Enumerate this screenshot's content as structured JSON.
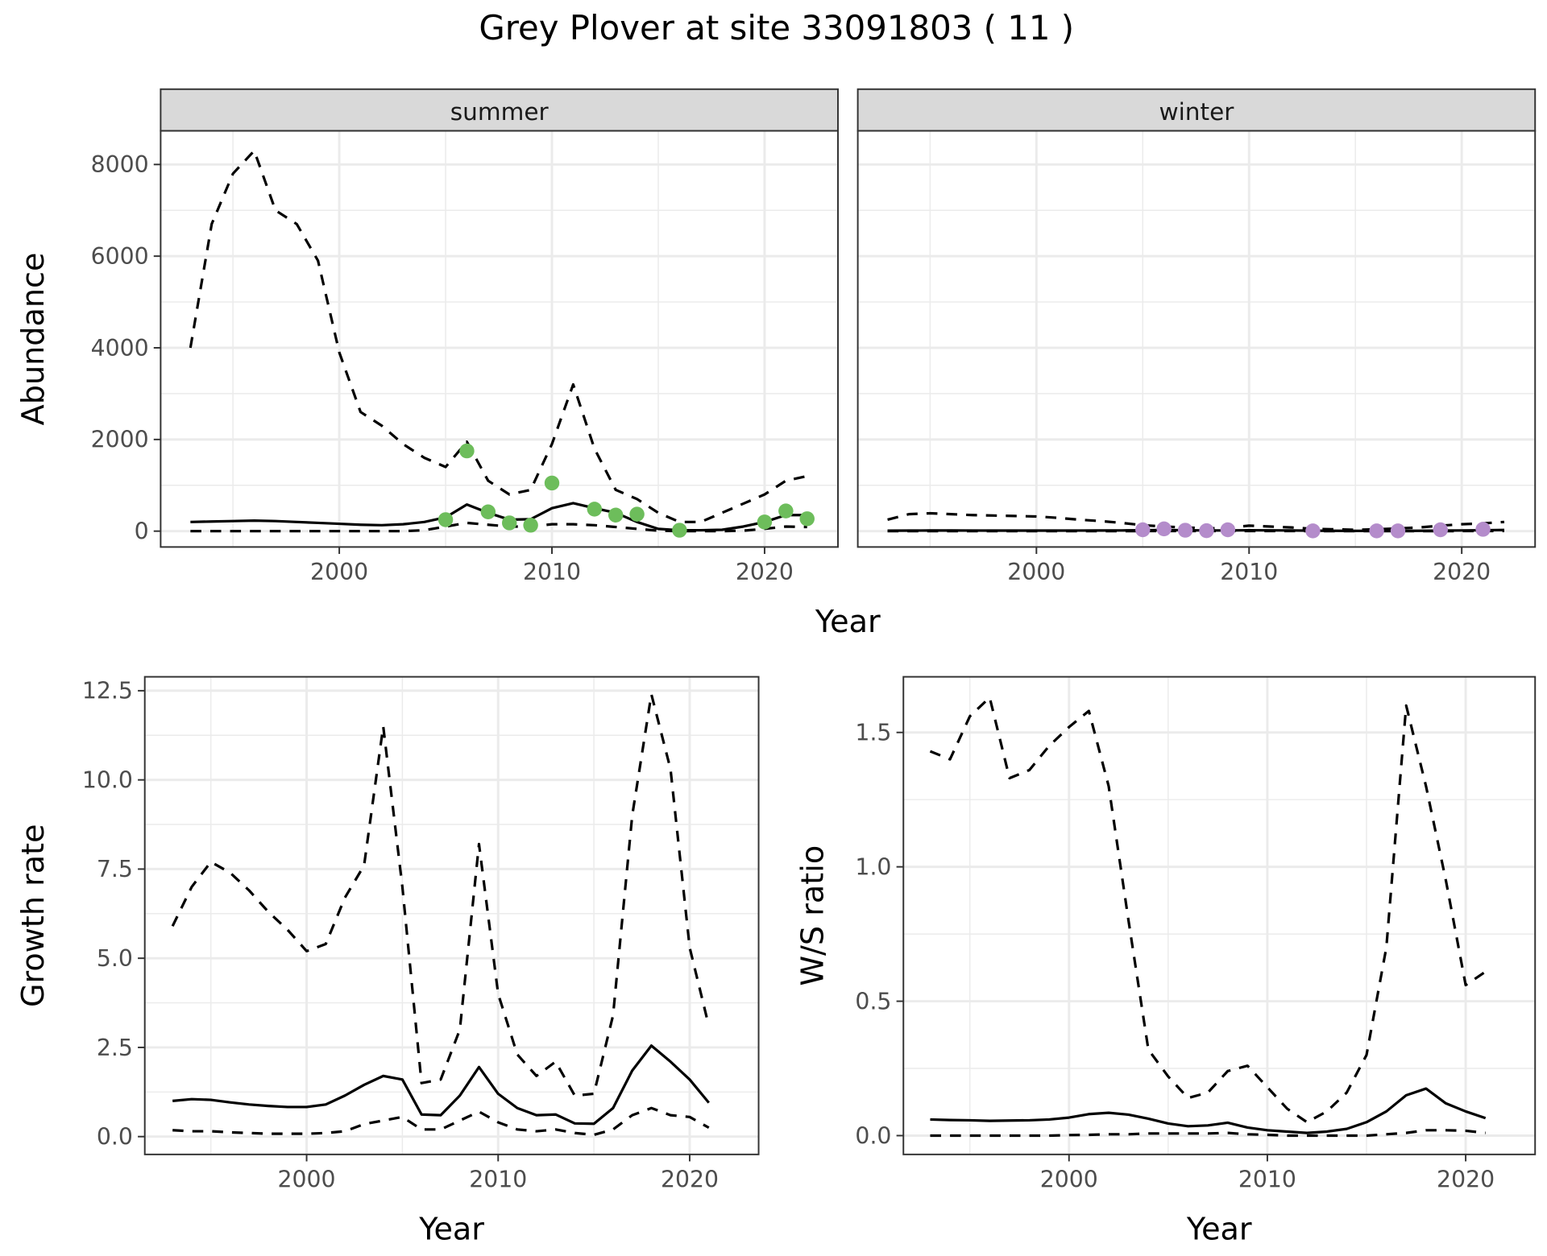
{
  "title": "Grey Plover at site 33091803 ( 11 )",
  "colors": {
    "summer_points": "#6DBD5B",
    "winter_points": "#B48CCB",
    "lines": "#000000",
    "strip": "#D9D9D9",
    "grid": "#EBEBEB"
  },
  "chart_data": [
    {
      "id": "summer",
      "type": "line",
      "strip": "summer",
      "xlabel": "Year",
      "ylabel": "Abundance",
      "xlim": [
        1991.6,
        2023.45
      ],
      "ylim": [
        -346,
        8735
      ],
      "xticks": [
        2000,
        2010,
        2020
      ],
      "yticks": [
        0,
        2000,
        4000,
        6000,
        8000
      ],
      "grid": true,
      "x": [
        1993,
        1994,
        1995,
        1996,
        1997,
        1998,
        1999,
        2000,
        2001,
        2002,
        2003,
        2004,
        2005,
        2006,
        2007,
        2008,
        2009,
        2010,
        2011,
        2012,
        2013,
        2014,
        2015,
        2016,
        2017,
        2018,
        2019,
        2020,
        2021,
        2022
      ],
      "series": [
        {
          "style": "dashed",
          "values": [
            4000,
            6700,
            7800,
            8300,
            7000,
            6700,
            5900,
            3900,
            2600,
            2300,
            1900,
            1600,
            1400,
            1950,
            1100,
            800,
            900,
            1900,
            3200,
            1800,
            900,
            700,
            400,
            200,
            200,
            400,
            600,
            800,
            1100,
            1200
          ]
        },
        {
          "style": "solid",
          "values": [
            200,
            210,
            220,
            230,
            220,
            200,
            180,
            160,
            140,
            130,
            150,
            200,
            300,
            580,
            400,
            250,
            260,
            500,
            610,
            500,
            400,
            200,
            50,
            20,
            20,
            30,
            100,
            200,
            350,
            350
          ]
        },
        {
          "style": "dashed",
          "values": [
            0,
            0,
            0,
            0,
            0,
            0,
            0,
            0,
            0,
            0,
            0,
            20,
            100,
            180,
            140,
            100,
            100,
            150,
            150,
            130,
            90,
            50,
            10,
            0,
            0,
            0,
            10,
            50,
            100,
            90
          ]
        }
      ],
      "points": {
        "x": [
          2005,
          2006,
          2007,
          2008,
          2009,
          2010,
          2012,
          2013,
          2014,
          2016,
          2020,
          2021,
          2022
        ],
        "y": [
          250,
          1750,
          420,
          180,
          130,
          1050,
          480,
          350,
          370,
          20,
          200,
          440,
          270
        ]
      }
    },
    {
      "id": "winter",
      "type": "line",
      "strip": "winter",
      "xlim": [
        1991.6,
        2023.45
      ],
      "ylim": [
        -346,
        8735
      ],
      "xticks": [
        2000,
        2010,
        2020
      ],
      "yticks": [],
      "grid": true,
      "x": [
        1993,
        1994,
        1995,
        1996,
        1997,
        1998,
        1999,
        2000,
        2001,
        2002,
        2003,
        2004,
        2005,
        2006,
        2007,
        2008,
        2009,
        2010,
        2011,
        2012,
        2013,
        2014,
        2015,
        2016,
        2017,
        2018,
        2019,
        2020,
        2021,
        2022
      ],
      "series": [
        {
          "style": "dashed",
          "values": [
            250,
            370,
            390,
            370,
            350,
            340,
            330,
            320,
            290,
            250,
            220,
            180,
            130,
            100,
            80,
            60,
            70,
            120,
            100,
            80,
            50,
            40,
            30,
            40,
            60,
            80,
            120,
            150,
            170,
            200
          ]
        },
        {
          "style": "solid",
          "values": [
            10,
            12,
            14,
            14,
            13,
            12,
            12,
            12,
            12,
            13,
            14,
            15,
            20,
            25,
            20,
            15,
            15,
            20,
            18,
            15,
            10,
            8,
            5,
            5,
            5,
            8,
            12,
            15,
            20,
            25
          ]
        },
        {
          "style": "dashed",
          "values": [
            0,
            0,
            0,
            0,
            0,
            0,
            0,
            0,
            0,
            0,
            0,
            0,
            2,
            3,
            2,
            2,
            2,
            3,
            3,
            2,
            1,
            1,
            0,
            0,
            0,
            0,
            1,
            2,
            3,
            4
          ]
        }
      ],
      "points": {
        "x": [
          2005,
          2006,
          2007,
          2008,
          2009,
          2013,
          2016,
          2017,
          2019,
          2021
        ],
        "y": [
          30,
          50,
          20,
          10,
          30,
          5,
          5,
          5,
          30,
          40
        ]
      }
    },
    {
      "id": "growth",
      "type": "line",
      "xlabel": "Year",
      "ylabel": "Growth rate",
      "xlim": [
        1991.55,
        2023.6
      ],
      "ylim": [
        -0.5,
        12.89
      ],
      "xticks": [
        2000,
        2010,
        2020
      ],
      "yticks": [
        0.0,
        2.5,
        5.0,
        7.5,
        10.0,
        12.5
      ],
      "ytick_labels": [
        "0.0",
        "2.5",
        "5.0",
        "7.5",
        "10.0",
        "12.5"
      ],
      "grid": true,
      "x": [
        1993,
        1994,
        1995,
        1996,
        1997,
        1998,
        1999,
        2000,
        2001,
        2002,
        2003,
        2004,
        2005,
        2006,
        2007,
        2008,
        2009,
        2010,
        2011,
        2012,
        2013,
        2014,
        2015,
        2016,
        2017,
        2018,
        2019,
        2020,
        2021
      ],
      "series": [
        {
          "style": "dashed",
          "values": [
            5.9,
            7.0,
            7.7,
            7.4,
            6.9,
            6.3,
            5.8,
            5.2,
            5.4,
            6.7,
            7.6,
            11.5,
            7.0,
            1.5,
            1.6,
            3.0,
            8.2,
            4.0,
            2.3,
            1.7,
            2.1,
            1.15,
            1.2,
            3.4,
            9.0,
            12.4,
            10.3,
            5.3,
            3.1
          ]
        },
        {
          "style": "solid",
          "values": [
            1.0,
            1.05,
            1.03,
            0.96,
            0.9,
            0.86,
            0.83,
            0.83,
            0.9,
            1.15,
            1.45,
            1.7,
            1.6,
            0.62,
            0.6,
            1.15,
            1.95,
            1.2,
            0.8,
            0.6,
            0.62,
            0.37,
            0.36,
            0.8,
            1.85,
            2.55,
            2.1,
            1.6,
            0.95
          ]
        },
        {
          "style": "dashed",
          "values": [
            0.18,
            0.15,
            0.15,
            0.12,
            0.1,
            0.08,
            0.08,
            0.08,
            0.1,
            0.15,
            0.35,
            0.45,
            0.55,
            0.2,
            0.2,
            0.45,
            0.7,
            0.4,
            0.2,
            0.15,
            0.2,
            0.1,
            0.05,
            0.2,
            0.6,
            0.8,
            0.6,
            0.55,
            0.25
          ]
        }
      ]
    },
    {
      "id": "ratio",
      "type": "line",
      "xlabel": "Year",
      "ylabel": "W/S ratio",
      "xlim": [
        1991.65,
        2023.5
      ],
      "ylim": [
        -0.07,
        1.707
      ],
      "xticks": [
        2000,
        2010,
        2020
      ],
      "yticks": [
        0.0,
        0.5,
        1.0,
        1.5
      ],
      "ytick_labels": [
        "0.0",
        "0.5",
        "1.0",
        "1.5"
      ],
      "grid": true,
      "x": [
        1993,
        1994,
        1995,
        1996,
        1997,
        1998,
        1999,
        2000,
        2001,
        2002,
        2003,
        2004,
        2005,
        2006,
        2007,
        2008,
        2009,
        2010,
        2011,
        2012,
        2013,
        2014,
        2015,
        2016,
        2017,
        2018,
        2019,
        2020,
        2021
      ],
      "series": [
        {
          "style": "dashed",
          "values": [
            1.43,
            1.4,
            1.56,
            1.63,
            1.33,
            1.36,
            1.45,
            1.52,
            1.58,
            1.3,
            0.8,
            0.32,
            0.22,
            0.14,
            0.16,
            0.24,
            0.26,
            0.18,
            0.1,
            0.05,
            0.09,
            0.16,
            0.3,
            0.7,
            1.6,
            1.3,
            0.95,
            0.56,
            0.61
          ]
        },
        {
          "style": "solid",
          "values": [
            0.06,
            0.058,
            0.057,
            0.055,
            0.056,
            0.057,
            0.06,
            0.067,
            0.08,
            0.085,
            0.078,
            0.063,
            0.045,
            0.035,
            0.038,
            0.048,
            0.03,
            0.02,
            0.015,
            0.01,
            0.015,
            0.025,
            0.05,
            0.09,
            0.15,
            0.175,
            0.12,
            0.09,
            0.065
          ]
        },
        {
          "style": "dashed",
          "values": [
            0,
            0,
            0,
            0,
            0,
            0,
            0,
            0.002,
            0.003,
            0.005,
            0.005,
            0.008,
            0.008,
            0.008,
            0.008,
            0.01,
            0.005,
            0.003,
            0,
            0,
            0,
            0,
            0,
            0.005,
            0.01,
            0.02,
            0.02,
            0.018,
            0.01
          ]
        }
      ]
    }
  ]
}
